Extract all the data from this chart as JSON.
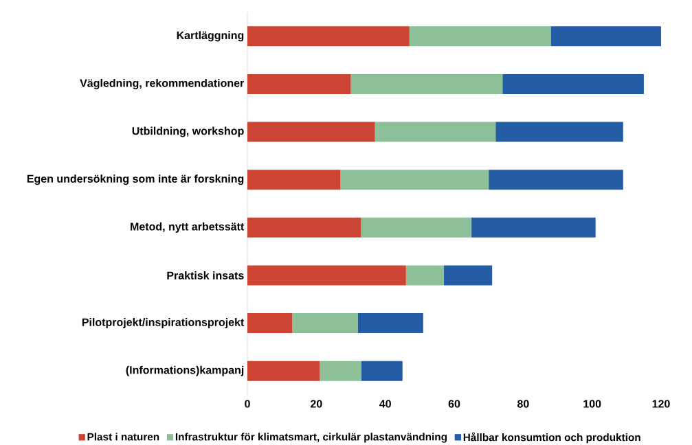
{
  "chart_data": {
    "type": "bar",
    "orientation": "horizontal",
    "stacked": true,
    "categories": [
      "Kartläggning",
      "Vägledning, rekommendationer",
      "Utbildning, workshop",
      "Egen undersökning som inte är forskning",
      "Metod, nytt arbetssätt",
      "Praktisk insats",
      "Pilotprojekt/inspirationsprojekt",
      "(Informations)kampanj"
    ],
    "series": [
      {
        "name": "Plast i naturen",
        "color": "#cc4434",
        "values": [
          47,
          30,
          37,
          27,
          33,
          46,
          13,
          21
        ]
      },
      {
        "name": "Infrastruktur för klimatsmart, cirkulär plastanvändning",
        "color": "#8dbf98",
        "values": [
          41,
          44,
          35,
          43,
          32,
          11,
          19,
          12
        ]
      },
      {
        "name": "Hållbar konsumtion och produktion",
        "color": "#245da6",
        "values": [
          32,
          41,
          37,
          39,
          36,
          14,
          19,
          12
        ]
      }
    ],
    "xlim": [
      0,
      120
    ],
    "xticks": [
      0,
      20,
      40,
      60,
      80,
      100,
      120
    ],
    "grid": false,
    "legend": "bottom"
  }
}
